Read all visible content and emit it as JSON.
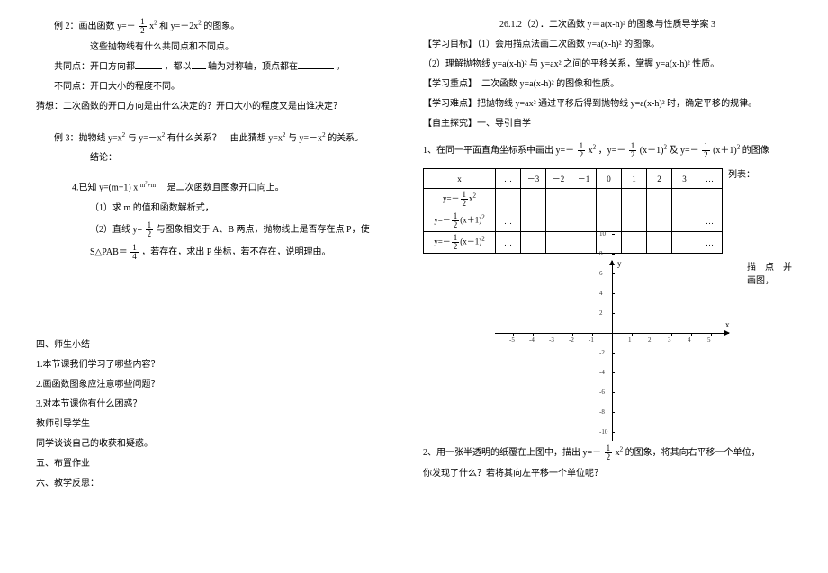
{
  "left": {
    "ex2_l1_a": "例 2：画出函数 y=－",
    "ex2_l1_b": "x",
    "ex2_l1_c": " 和 y=－2x",
    "ex2_l1_d": " 的图象。",
    "ex2_l2": "这些抛物线有什么共同点和不同点。",
    "ex2_l3_a": "共同点：开口方向都",
    "ex2_l3_b": "，都以",
    "ex2_l3_c": "轴为对称轴，顶点都在",
    "ex2_l3_d": "。",
    "ex2_l4": "不同点：开口大小的程度不同。",
    "ex2_l5": "猜想：二次函数的开口方向是由什么决定的？开口大小的程度又是由谁决定？",
    "ex3_l1_a": "例 3：抛物线 y=x",
    "ex3_l1_b": " 与 y=－x",
    "ex3_l1_c": "有什么关系？　由此猜想 y=x",
    "ex3_l1_d": " 与 y=－x",
    "ex3_l1_e": " 的关系。",
    "ex3_l2": "结论：",
    "ex4_l1_a": "4.已知 y=(m+1) x",
    "ex4_l1_exp_a": "m",
    "ex4_l1_exp_b": "+m",
    "ex4_l1_b": "　是二次函数且图象开口向上。",
    "ex4_l2": "（1）求 m 的值和函数解析式，",
    "ex4_l3_a": "（2）直线 y=",
    "ex4_l3_b": "与图象相交于 A、B 两点，抛物线上是否存在点 P，使",
    "ex4_l4_a": "S△PAB＝",
    "ex4_l4_b": "，若存在，求出 P 坐标，若不存在，说明理由。",
    "sec4_title": "四、师生小结",
    "sec4_q1": "1.本节课我们学习了哪些内容？",
    "sec4_q2": "2.画函数图象应注意哪些问题？",
    "sec4_q3": "3.对本节课你有什么困惑？",
    "sec4_t1": "教师引导学生",
    "sec4_t2": "同学谈谈自己的收获和疑惑。",
    "sec5_title": "五、布置作业",
    "sec6_title": "六、教学反思：",
    "frac_1_2": {
      "num": "1",
      "den": "2"
    },
    "frac_1_4": {
      "num": "1",
      "den": "4"
    }
  },
  "right": {
    "title": "26.1.2（2）．二次函数 y＝a(x-h)² 的图象与性质导学案 3",
    "goal_l1": "【学习目标】（1）会用描点法画二次函数 y=a(x-h)² 的图像。",
    "goal_l2": "（2）理解抛物线 y=a(x-h)² 与 y=ax² 之间的平移关系，掌握 y=a(x-h)² 性质。",
    "focus": "【学习重点】　二次函数 y=a(x-h)² 的图像和性质。",
    "difficult": "【学习难点】把抛物线 y=ax² 通过平移后得到抛物线 y=a(x-h)² 时，确定平移的规律。",
    "explore": "【自主探究】一、导引自学",
    "q1_a": "1、在同一平面直角坐标系中画出 y=－",
    "q1_b": "x",
    "q1_c": "，y=－",
    "q1_d": "(x－1)",
    "q1_e": " 及 y=－ ",
    "q1_f": "(x＋1)",
    "q1_g": " 的图像",
    "list_label": "列表：",
    "table": {
      "header": [
        "x",
        "…",
        "－3",
        "－2",
        "－1",
        "0",
        "1",
        "2",
        "3",
        "…"
      ],
      "row1_label_a": "y=－",
      "row1_label_b": "x",
      "row2_label_a": "y=－",
      "row2_label_b": "(x＋1)",
      "row3_label_a": "y=－",
      "row3_label_b": "(x－1)",
      "ellipsis": "…"
    },
    "plot_label": "描　点　并画图，",
    "axis": {
      "x_label": "x",
      "y_label": "y",
      "x_ticks": [
        -5,
        -4,
        -3,
        -2,
        -1,
        1,
        2,
        3,
        4,
        5
      ],
      "y_ticks_pos": [
        2,
        4,
        6,
        8,
        10
      ],
      "y_ticks_neg": [
        -2,
        -4,
        -6,
        -8,
        -10
      ],
      "tick_color": "#000000",
      "label_color": "#333333",
      "axis_color": "#000000"
    },
    "q2_a": "2、用一张半透明的纸覆在上图中，描出 y=－",
    "q2_b": "x",
    "q2_c": "的图象，将其向右平移一个单位，",
    "q2_d": "你发现了什么？若将其向左平移一个单位呢？",
    "frac_1_2": {
      "num": "1",
      "den": "2"
    }
  }
}
